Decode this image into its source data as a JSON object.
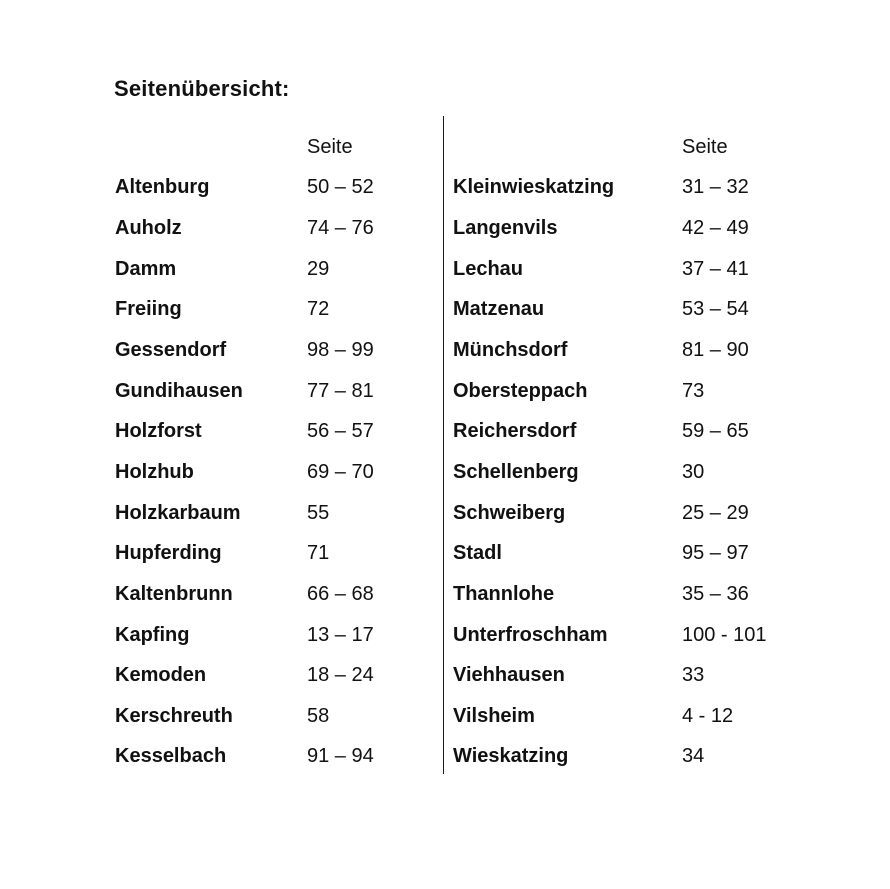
{
  "page": {
    "title": "Seitenübersicht:",
    "column_header": "Seite",
    "divider_color": "#1a1a1a",
    "text_color": "#111111",
    "background_color": "#ffffff",
    "columns": [
      {
        "entries": [
          {
            "name": "Altenburg",
            "pages": "50 – 52"
          },
          {
            "name": "Auholz",
            "pages": "74 – 76"
          },
          {
            "name": "Damm",
            "pages": "29"
          },
          {
            "name": "Freiing",
            "pages": "72"
          },
          {
            "name": "Gessendorf",
            "pages": "98 – 99"
          },
          {
            "name": "Gundihausen",
            "pages": "77 – 81"
          },
          {
            "name": "Holzforst",
            "pages": "56 – 57"
          },
          {
            "name": "Holzhub",
            "pages": "69 – 70"
          },
          {
            "name": "Holzkarbaum",
            "pages": "55"
          },
          {
            "name": "Hupferding",
            "pages": "71"
          },
          {
            "name": "Kaltenbrunn",
            "pages": "66 – 68"
          },
          {
            "name": "Kapfing",
            "pages": "13 – 17"
          },
          {
            "name": "Kemoden",
            "pages": "18 – 24"
          },
          {
            "name": "Kerschreuth",
            "pages": "58"
          },
          {
            "name": "Kesselbach",
            "pages": "91 – 94"
          }
        ]
      },
      {
        "entries": [
          {
            "name": "Kleinwieskatzing",
            "pages": "31 – 32"
          },
          {
            "name": "Langenvils",
            "pages": "42 – 49"
          },
          {
            "name": "Lechau",
            "pages": "37 – 41"
          },
          {
            "name": "Matzenau",
            "pages": "53 – 54"
          },
          {
            "name": "Münchsdorf",
            "pages": "81 – 90"
          },
          {
            "name": "Obersteppach",
            "pages": "73"
          },
          {
            "name": "Reichersdorf",
            "pages": "59 – 65"
          },
          {
            "name": "Schellenberg",
            "pages": "30"
          },
          {
            "name": "Schweiberg",
            "pages": "25 – 29"
          },
          {
            "name": "Stadl",
            "pages": "95 – 97"
          },
          {
            "name": "Thannlohe",
            "pages": "35 – 36"
          },
          {
            "name": "Unterfroschham",
            "pages": "100 - 101"
          },
          {
            "name": "Viehhausen",
            "pages": "33"
          },
          {
            "name": "Vilsheim",
            "pages": "4 - 12"
          },
          {
            "name": "Wieskatzing",
            "pages": "34"
          }
        ]
      }
    ]
  }
}
